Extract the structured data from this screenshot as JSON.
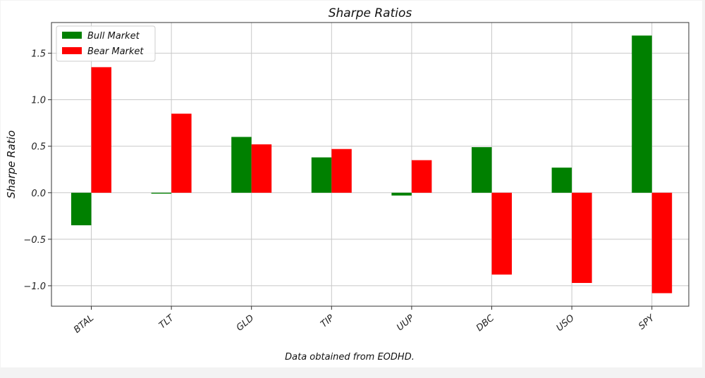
{
  "chart_data": {
    "type": "bar",
    "title": "Sharpe Ratios",
    "xlabel": "",
    "ylabel": "Sharpe Ratio",
    "categories": [
      "BTAL",
      "TLT",
      "GLD",
      "TIP",
      "UUP",
      "DBC",
      "USO",
      "SPY"
    ],
    "series": [
      {
        "name": "Bull Market",
        "color": "#008000",
        "values": [
          -0.35,
          -0.01,
          0.6,
          0.38,
          -0.03,
          0.49,
          0.27,
          1.69
        ]
      },
      {
        "name": "Bear Market",
        "color": "#ff0000",
        "values": [
          1.35,
          0.85,
          0.52,
          0.47,
          0.35,
          -0.88,
          -0.97,
          -1.08
        ]
      }
    ],
    "ylim": [
      -1.22,
      1.83
    ],
    "yticks": [
      -1.0,
      -0.5,
      0.0,
      0.5,
      1.0,
      1.5
    ],
    "ytick_labels": [
      "−1.0",
      "−0.5",
      "0.0",
      "0.5",
      "1.0",
      "1.5"
    ],
    "grid": true,
    "legend": "top-left",
    "footnote": "Data obtained from EODHD."
  }
}
